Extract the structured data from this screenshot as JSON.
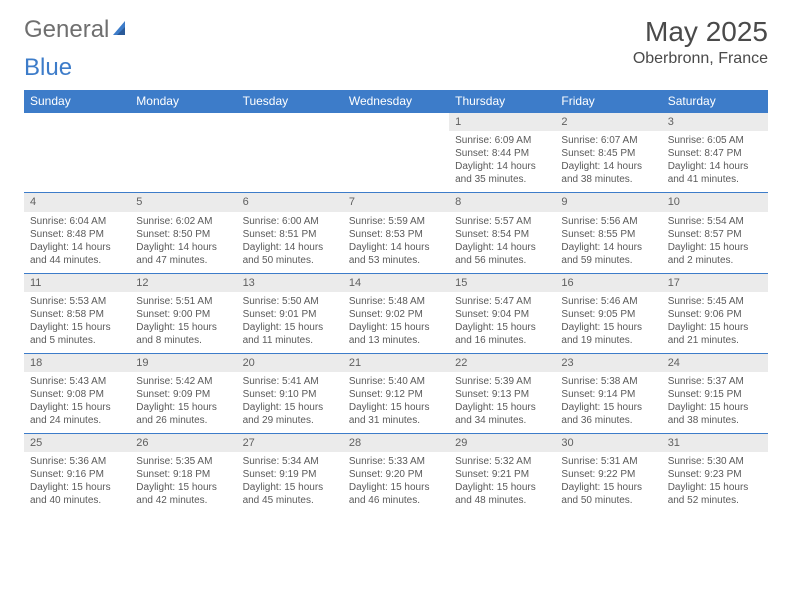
{
  "logo": {
    "word1": "General",
    "word2": "Blue"
  },
  "title": {
    "month": "May 2025",
    "location": "Oberbronn, France"
  },
  "colors": {
    "header_bg": "#3d7cc9",
    "header_text": "#ffffff",
    "daynum_bg": "#ebebeb",
    "rule": "#3d7cc9",
    "body_text": "#5a5a5a",
    "page_bg": "#ffffff"
  },
  "weekdays": [
    "Sunday",
    "Monday",
    "Tuesday",
    "Wednesday",
    "Thursday",
    "Friday",
    "Saturday"
  ],
  "weeks": [
    [
      null,
      null,
      null,
      null,
      {
        "d": "1",
        "sr": "Sunrise: 6:09 AM",
        "ss": "Sunset: 8:44 PM",
        "dl1": "Daylight: 14 hours",
        "dl2": "and 35 minutes."
      },
      {
        "d": "2",
        "sr": "Sunrise: 6:07 AM",
        "ss": "Sunset: 8:45 PM",
        "dl1": "Daylight: 14 hours",
        "dl2": "and 38 minutes."
      },
      {
        "d": "3",
        "sr": "Sunrise: 6:05 AM",
        "ss": "Sunset: 8:47 PM",
        "dl1": "Daylight: 14 hours",
        "dl2": "and 41 minutes."
      }
    ],
    [
      {
        "d": "4",
        "sr": "Sunrise: 6:04 AM",
        "ss": "Sunset: 8:48 PM",
        "dl1": "Daylight: 14 hours",
        "dl2": "and 44 minutes."
      },
      {
        "d": "5",
        "sr": "Sunrise: 6:02 AM",
        "ss": "Sunset: 8:50 PM",
        "dl1": "Daylight: 14 hours",
        "dl2": "and 47 minutes."
      },
      {
        "d": "6",
        "sr": "Sunrise: 6:00 AM",
        "ss": "Sunset: 8:51 PM",
        "dl1": "Daylight: 14 hours",
        "dl2": "and 50 minutes."
      },
      {
        "d": "7",
        "sr": "Sunrise: 5:59 AM",
        "ss": "Sunset: 8:53 PM",
        "dl1": "Daylight: 14 hours",
        "dl2": "and 53 minutes."
      },
      {
        "d": "8",
        "sr": "Sunrise: 5:57 AM",
        "ss": "Sunset: 8:54 PM",
        "dl1": "Daylight: 14 hours",
        "dl2": "and 56 minutes."
      },
      {
        "d": "9",
        "sr": "Sunrise: 5:56 AM",
        "ss": "Sunset: 8:55 PM",
        "dl1": "Daylight: 14 hours",
        "dl2": "and 59 minutes."
      },
      {
        "d": "10",
        "sr": "Sunrise: 5:54 AM",
        "ss": "Sunset: 8:57 PM",
        "dl1": "Daylight: 15 hours",
        "dl2": "and 2 minutes."
      }
    ],
    [
      {
        "d": "11",
        "sr": "Sunrise: 5:53 AM",
        "ss": "Sunset: 8:58 PM",
        "dl1": "Daylight: 15 hours",
        "dl2": "and 5 minutes."
      },
      {
        "d": "12",
        "sr": "Sunrise: 5:51 AM",
        "ss": "Sunset: 9:00 PM",
        "dl1": "Daylight: 15 hours",
        "dl2": "and 8 minutes."
      },
      {
        "d": "13",
        "sr": "Sunrise: 5:50 AM",
        "ss": "Sunset: 9:01 PM",
        "dl1": "Daylight: 15 hours",
        "dl2": "and 11 minutes."
      },
      {
        "d": "14",
        "sr": "Sunrise: 5:48 AM",
        "ss": "Sunset: 9:02 PM",
        "dl1": "Daylight: 15 hours",
        "dl2": "and 13 minutes."
      },
      {
        "d": "15",
        "sr": "Sunrise: 5:47 AM",
        "ss": "Sunset: 9:04 PM",
        "dl1": "Daylight: 15 hours",
        "dl2": "and 16 minutes."
      },
      {
        "d": "16",
        "sr": "Sunrise: 5:46 AM",
        "ss": "Sunset: 9:05 PM",
        "dl1": "Daylight: 15 hours",
        "dl2": "and 19 minutes."
      },
      {
        "d": "17",
        "sr": "Sunrise: 5:45 AM",
        "ss": "Sunset: 9:06 PM",
        "dl1": "Daylight: 15 hours",
        "dl2": "and 21 minutes."
      }
    ],
    [
      {
        "d": "18",
        "sr": "Sunrise: 5:43 AM",
        "ss": "Sunset: 9:08 PM",
        "dl1": "Daylight: 15 hours",
        "dl2": "and 24 minutes."
      },
      {
        "d": "19",
        "sr": "Sunrise: 5:42 AM",
        "ss": "Sunset: 9:09 PM",
        "dl1": "Daylight: 15 hours",
        "dl2": "and 26 minutes."
      },
      {
        "d": "20",
        "sr": "Sunrise: 5:41 AM",
        "ss": "Sunset: 9:10 PM",
        "dl1": "Daylight: 15 hours",
        "dl2": "and 29 minutes."
      },
      {
        "d": "21",
        "sr": "Sunrise: 5:40 AM",
        "ss": "Sunset: 9:12 PM",
        "dl1": "Daylight: 15 hours",
        "dl2": "and 31 minutes."
      },
      {
        "d": "22",
        "sr": "Sunrise: 5:39 AM",
        "ss": "Sunset: 9:13 PM",
        "dl1": "Daylight: 15 hours",
        "dl2": "and 34 minutes."
      },
      {
        "d": "23",
        "sr": "Sunrise: 5:38 AM",
        "ss": "Sunset: 9:14 PM",
        "dl1": "Daylight: 15 hours",
        "dl2": "and 36 minutes."
      },
      {
        "d": "24",
        "sr": "Sunrise: 5:37 AM",
        "ss": "Sunset: 9:15 PM",
        "dl1": "Daylight: 15 hours",
        "dl2": "and 38 minutes."
      }
    ],
    [
      {
        "d": "25",
        "sr": "Sunrise: 5:36 AM",
        "ss": "Sunset: 9:16 PM",
        "dl1": "Daylight: 15 hours",
        "dl2": "and 40 minutes."
      },
      {
        "d": "26",
        "sr": "Sunrise: 5:35 AM",
        "ss": "Sunset: 9:18 PM",
        "dl1": "Daylight: 15 hours",
        "dl2": "and 42 minutes."
      },
      {
        "d": "27",
        "sr": "Sunrise: 5:34 AM",
        "ss": "Sunset: 9:19 PM",
        "dl1": "Daylight: 15 hours",
        "dl2": "and 45 minutes."
      },
      {
        "d": "28",
        "sr": "Sunrise: 5:33 AM",
        "ss": "Sunset: 9:20 PM",
        "dl1": "Daylight: 15 hours",
        "dl2": "and 46 minutes."
      },
      {
        "d": "29",
        "sr": "Sunrise: 5:32 AM",
        "ss": "Sunset: 9:21 PM",
        "dl1": "Daylight: 15 hours",
        "dl2": "and 48 minutes."
      },
      {
        "d": "30",
        "sr": "Sunrise: 5:31 AM",
        "ss": "Sunset: 9:22 PM",
        "dl1": "Daylight: 15 hours",
        "dl2": "and 50 minutes."
      },
      {
        "d": "31",
        "sr": "Sunrise: 5:30 AM",
        "ss": "Sunset: 9:23 PM",
        "dl1": "Daylight: 15 hours",
        "dl2": "and 52 minutes."
      }
    ]
  ]
}
